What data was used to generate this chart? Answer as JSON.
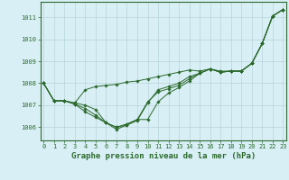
{
  "title": "Graphe pression niveau de la mer (hPa)",
  "xlabel_hours": [
    0,
    1,
    2,
    3,
    4,
    5,
    6,
    7,
    8,
    9,
    10,
    11,
    12,
    13,
    14,
    15,
    16,
    17,
    18,
    19,
    20,
    21,
    22,
    23
  ],
  "series": [
    [
      1008.0,
      1007.2,
      1007.2,
      1007.1,
      1007.7,
      1007.85,
      1007.9,
      1007.95,
      1008.05,
      1008.1,
      1008.2,
      1008.3,
      1008.4,
      1008.5,
      1008.6,
      1008.55,
      1008.65,
      1008.55,
      1008.55,
      1008.55,
      1008.9,
      1009.8,
      1011.05,
      1011.35
    ],
    [
      1008.0,
      1007.2,
      1007.2,
      1007.05,
      1006.7,
      1006.45,
      1006.2,
      1005.9,
      1006.1,
      1006.3,
      1007.1,
      1007.7,
      1007.85,
      1008.0,
      1008.3,
      1008.45,
      1008.65,
      1008.5,
      1008.55,
      1008.55,
      1008.9,
      1009.8,
      1011.05,
      1011.35
    ],
    [
      1008.0,
      1007.2,
      1007.2,
      1007.05,
      1006.85,
      1006.55,
      1006.2,
      1006.0,
      1006.1,
      1006.35,
      1007.15,
      1007.6,
      1007.75,
      1007.9,
      1008.2,
      1008.45,
      1008.65,
      1008.5,
      1008.55,
      1008.55,
      1008.9,
      1009.8,
      1011.05,
      1011.35
    ],
    [
      1008.0,
      1007.2,
      1007.2,
      1007.1,
      1007.0,
      1006.8,
      1006.2,
      1006.0,
      1006.15,
      1006.35,
      1006.35,
      1007.15,
      1007.55,
      1007.8,
      1008.1,
      1008.45,
      1008.65,
      1008.5,
      1008.55,
      1008.55,
      1008.9,
      1009.8,
      1011.05,
      1011.35
    ]
  ],
  "line_color": "#2d6a2d",
  "marker": "D",
  "marker_size": 1.8,
  "bg_color": "#d8eff5",
  "grid_color": "#b8d4da",
  "label_color": "#2d6a2d",
  "ylim": [
    1005.4,
    1011.7
  ],
  "yticks": [
    1006,
    1007,
    1008,
    1009,
    1010,
    1011
  ],
  "title_fontsize": 6.5,
  "tick_fontsize": 5.0
}
